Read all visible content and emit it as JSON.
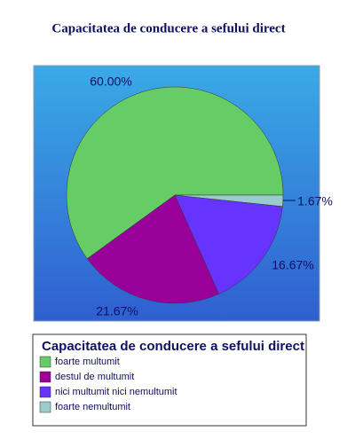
{
  "chart_data": {
    "type": "pie",
    "title": "Capacitatea de conducere a sefului direct",
    "legend_title": "Capacitatea de conducere a sefului direct",
    "categories": [
      "foarte multumit",
      "destul de multumit",
      "nici multumit nici nemultumit",
      "foarte nemultumit"
    ],
    "values": [
      60.0,
      21.67,
      16.67,
      1.67
    ],
    "value_labels": [
      "60.00%",
      "21.67%",
      "16.67%",
      "1.67%"
    ],
    "colors": [
      "#66cc66",
      "#990099",
      "#6633ff",
      "#99cccc"
    ],
    "legend": "bottom"
  }
}
